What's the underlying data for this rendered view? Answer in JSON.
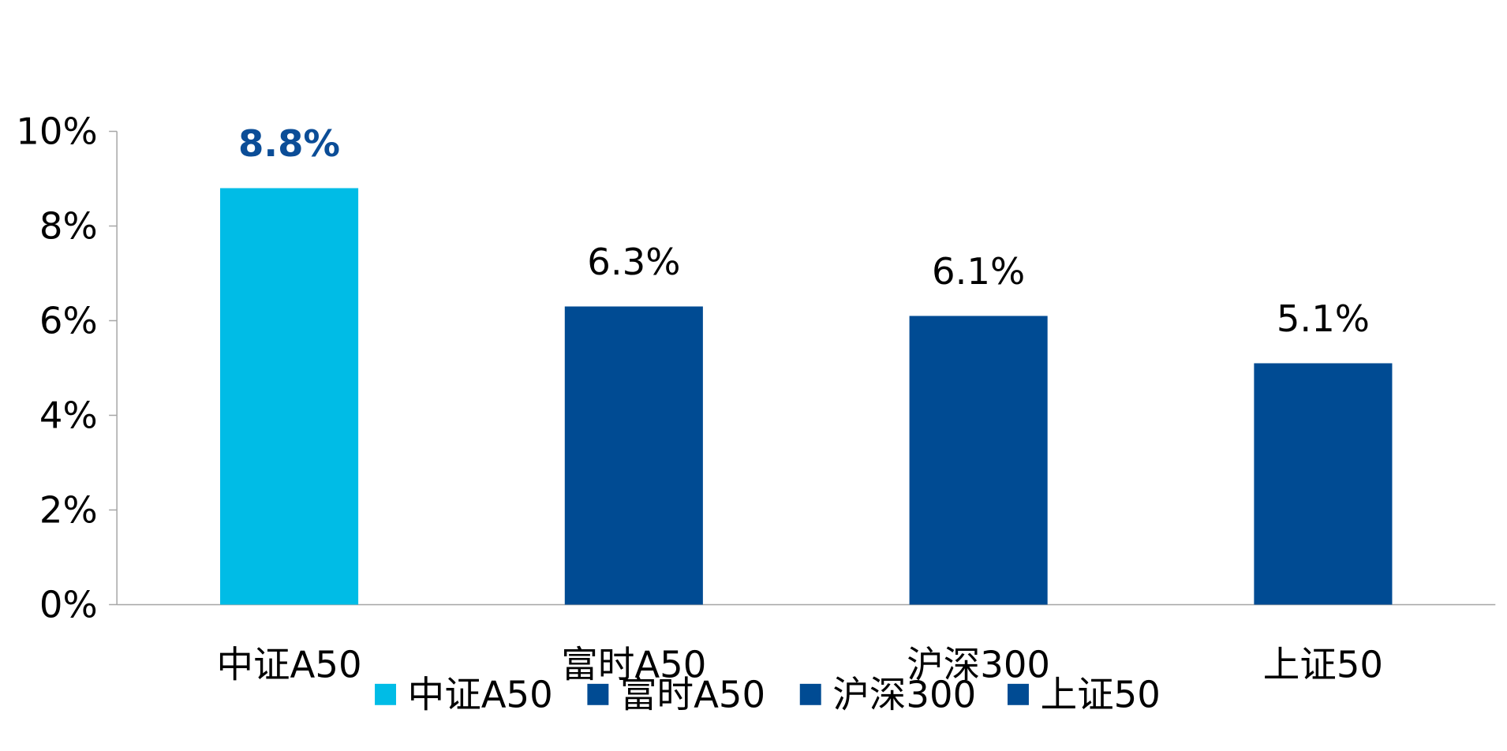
{
  "chart_data": {
    "type": "bar",
    "title": "",
    "xlabel": "",
    "ylabel": "",
    "categories": [
      "中证A50",
      "富时A50",
      "沪深300",
      "上证50"
    ],
    "values": [
      8.8,
      6.3,
      6.1,
      5.1
    ],
    "value_labels": [
      "8.8%",
      "6.3%",
      "6.1%",
      "5.1%"
    ],
    "ylim": [
      0,
      10
    ],
    "yticks": [
      0,
      2,
      4,
      6,
      8,
      10
    ],
    "ytick_labels": [
      "0%",
      "2%",
      "4%",
      "6%",
      "8%",
      "10%"
    ],
    "grid": false,
    "legend_position": "bottom",
    "legend": [
      {
        "name": "中证A50",
        "color": "#00BCE6"
      },
      {
        "name": "富时A50",
        "color": "#004B93"
      },
      {
        "name": "沪深300",
        "color": "#004B93"
      },
      {
        "name": "上证50",
        "color": "#004B93"
      }
    ],
    "colors": [
      "#00BCE6",
      "#004B93",
      "#004B93",
      "#004B93"
    ],
    "highlight_index": 0,
    "highlight_label_color": "#0B4D97",
    "label_color": "#000000",
    "axis_color": "#A6A6A6"
  }
}
